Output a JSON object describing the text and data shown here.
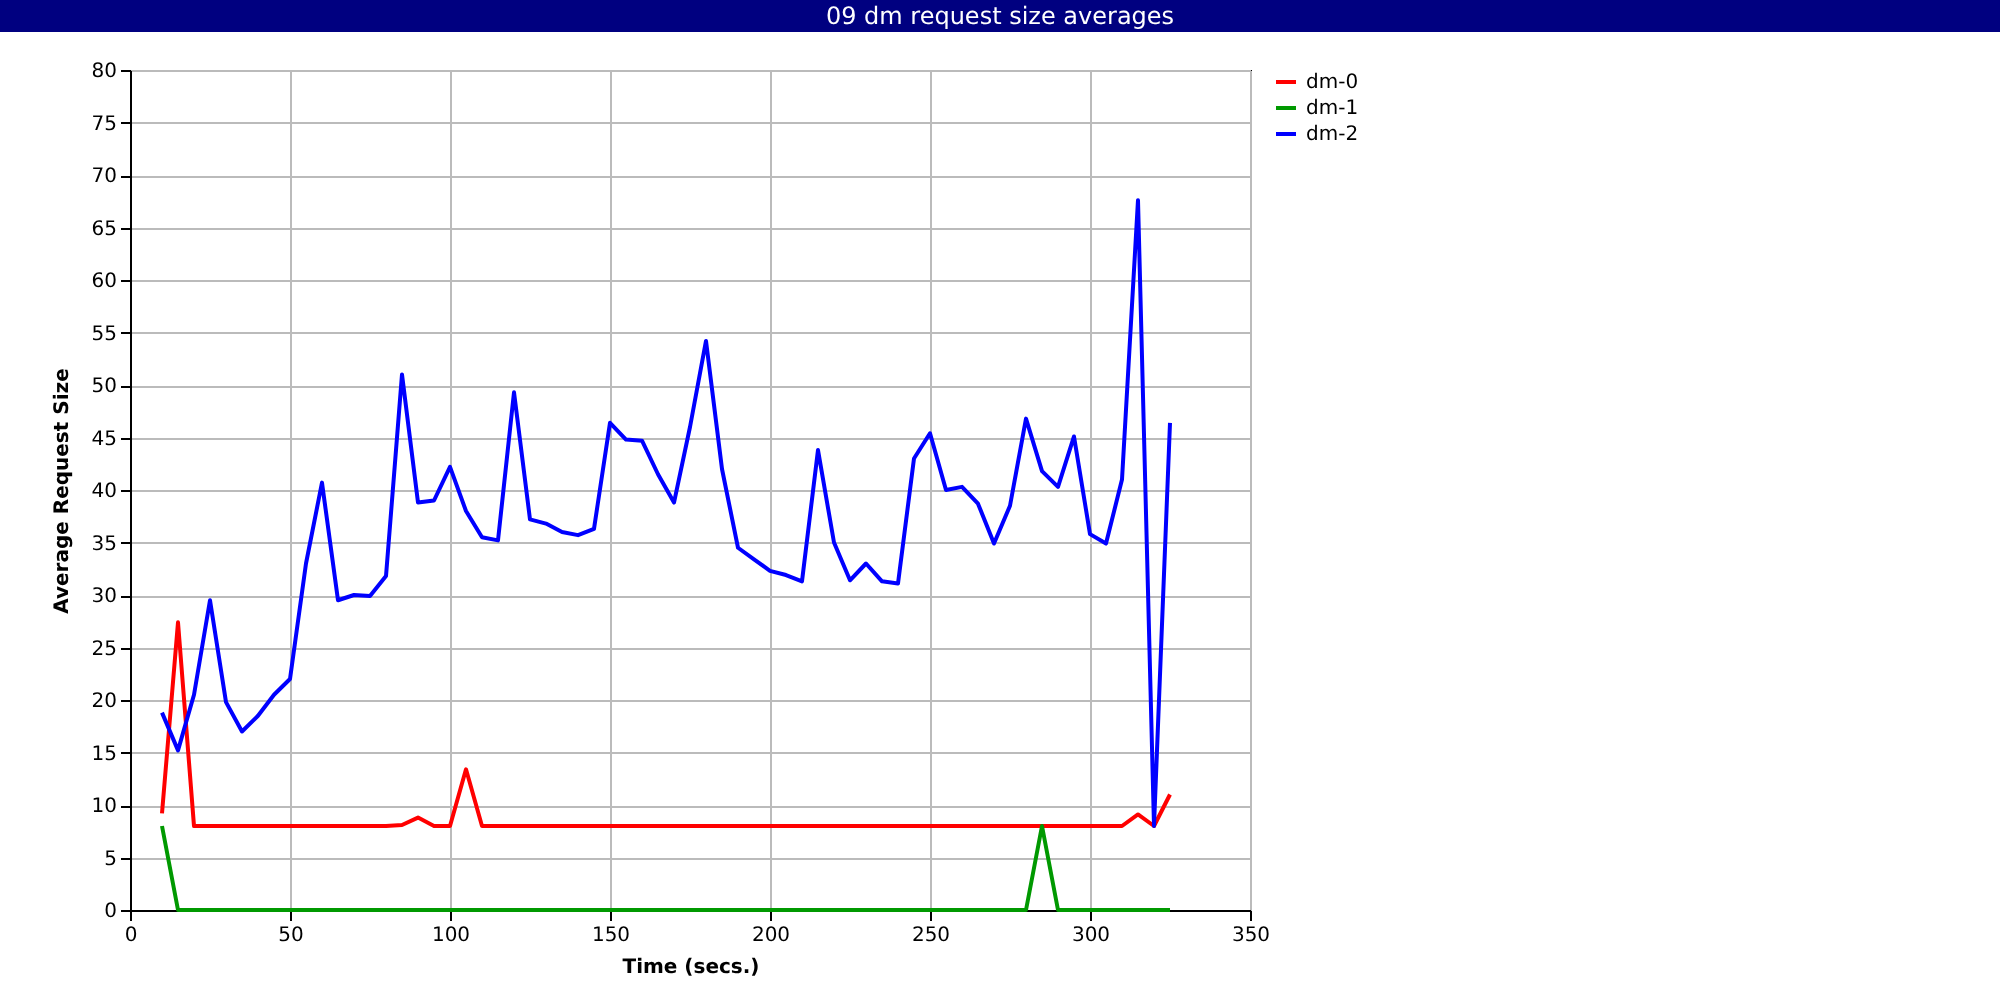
{
  "chart_data": {
    "type": "line",
    "title": "09 dm request size averages",
    "xlabel": "Time (secs.)",
    "ylabel": "Average Request Size",
    "x": [
      10,
      15,
      20,
      25,
      30,
      35,
      40,
      45,
      50,
      55,
      60,
      65,
      70,
      75,
      80,
      85,
      90,
      95,
      100,
      105,
      110,
      115,
      120,
      125,
      130,
      135,
      140,
      145,
      150,
      155,
      160,
      165,
      170,
      175,
      180,
      185,
      190,
      195,
      200,
      205,
      210,
      215,
      220,
      225,
      230,
      235,
      240,
      245,
      250,
      255,
      260,
      265,
      270,
      275,
      280,
      285,
      290,
      295,
      300,
      305,
      310,
      315,
      320,
      325
    ],
    "series": [
      {
        "name": "dm-0",
        "color": "#ff0000",
        "values": [
          9.2,
          27.4,
          8,
          8,
          8,
          8,
          8,
          8,
          8,
          8,
          8,
          8,
          8,
          8,
          8,
          8.1,
          8.8,
          8,
          8,
          13.4,
          8,
          8,
          8,
          8,
          8,
          8,
          8,
          8,
          8,
          8,
          8,
          8,
          8,
          8,
          8,
          8,
          8,
          8,
          8,
          8,
          8,
          8,
          8,
          8,
          8,
          8,
          8,
          8,
          8,
          8,
          8,
          8,
          8,
          8,
          8,
          8,
          8,
          8,
          8,
          8,
          8,
          9.1,
          8,
          11
        ]
      },
      {
        "name": "dm-1",
        "color": "#009900",
        "values": [
          8,
          0,
          0,
          0,
          0,
          0,
          0,
          0,
          0,
          0,
          0,
          0,
          0,
          0,
          0,
          0,
          0,
          0,
          0,
          0,
          0,
          0,
          0,
          0,
          0,
          0,
          0,
          0,
          0,
          0,
          0,
          0,
          0,
          0,
          0,
          0,
          0,
          0,
          0,
          0,
          0,
          0,
          0,
          0,
          0,
          0,
          0,
          0,
          0,
          0,
          0,
          0,
          0,
          0,
          0,
          8,
          0,
          0,
          0,
          0,
          0,
          0,
          0,
          0
        ]
      },
      {
        "name": "dm-2",
        "color": "#0000ff",
        "values": [
          18.8,
          15.2,
          20.5,
          29.5,
          19.8,
          17,
          18.5,
          20.5,
          22,
          33,
          40.7,
          29.5,
          30,
          29.9,
          31.8,
          51,
          38.8,
          39,
          42.2,
          38,
          35.5,
          35.2,
          49.3,
          37.2,
          36.8,
          36,
          35.7,
          36.3,
          46.4,
          44.8,
          44.7,
          41.5,
          38.8,
          46,
          54.2,
          42,
          34.5,
          33.4,
          32.3,
          31.9,
          31.3,
          43.8,
          35,
          31.4,
          33,
          31.3,
          31.1,
          43,
          45.4,
          40,
          40.3,
          38.7,
          34.9,
          38.5,
          46.8,
          41.8,
          40.3,
          45.1,
          35.8,
          34.9,
          41,
          67.6,
          8,
          46.4
        ]
      }
    ],
    "xlim": [
      0,
      350
    ],
    "xticks": [
      0,
      50,
      100,
      150,
      200,
      250,
      300,
      350
    ],
    "ylim": [
      0,
      80
    ],
    "yticks": [
      0,
      5,
      10,
      15,
      20,
      25,
      30,
      35,
      40,
      45,
      50,
      55,
      60,
      65,
      70,
      75,
      80
    ],
    "grid": true,
    "legend": "top right",
    "marker": "none",
    "line_style": "solid"
  }
}
